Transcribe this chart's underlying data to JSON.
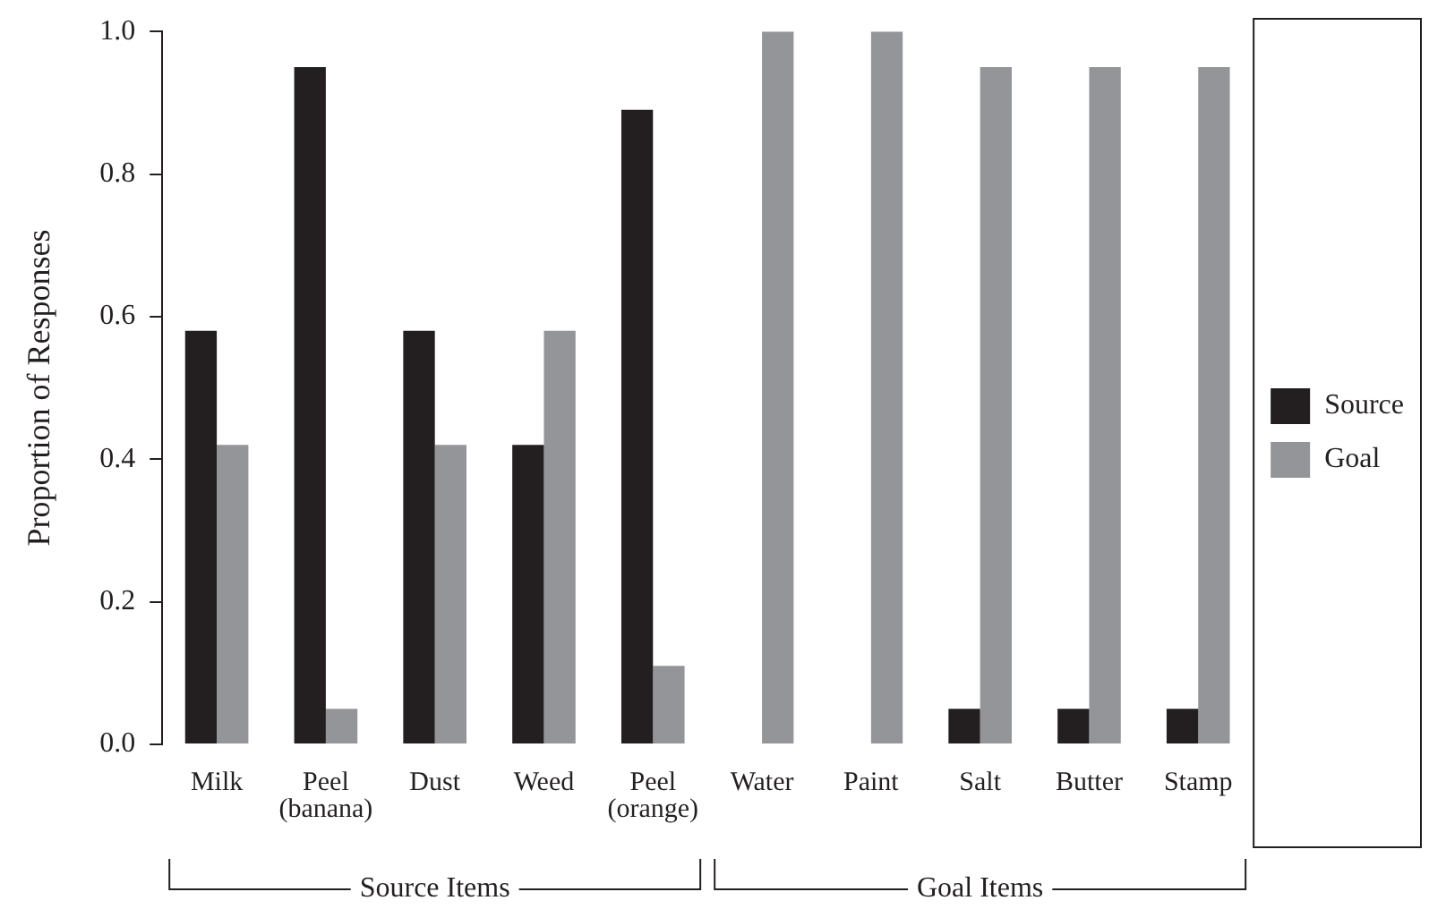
{
  "chart_data": {
    "type": "bar",
    "ylabel": "Proportion of Responses",
    "categories": [
      "Milk",
      "Peel\n(banana)",
      "Dust",
      "Weed",
      "Peel\n(orange)",
      "Water",
      "Paint",
      "Salt",
      "Butter",
      "Stamp"
    ],
    "series": [
      {
        "name": "Source",
        "color": "#231f20",
        "values": [
          0.58,
          0.95,
          0.58,
          0.42,
          0.89,
          0,
          0,
          0.05,
          0.05,
          0.05
        ]
      },
      {
        "name": "Goal",
        "color": "#939598",
        "values": [
          0.42,
          0.05,
          0.42,
          0.58,
          0.11,
          1.0,
          1.0,
          0.95,
          0.95,
          0.95
        ]
      }
    ],
    "ylim": [
      0,
      1
    ],
    "yticks": [
      {
        "value": 0,
        "label": "0.0"
      },
      {
        "value": 0.2,
        "label": "0.2"
      },
      {
        "value": 0.4,
        "label": "0.4"
      },
      {
        "value": 0.6,
        "label": "0.6"
      },
      {
        "value": 0.8,
        "label": "0.8"
      },
      {
        "value": 1,
        "label": "1.0"
      }
    ],
    "grid": false,
    "legend": "right",
    "annotations": [
      "Source Items",
      "Goal Items"
    ]
  }
}
